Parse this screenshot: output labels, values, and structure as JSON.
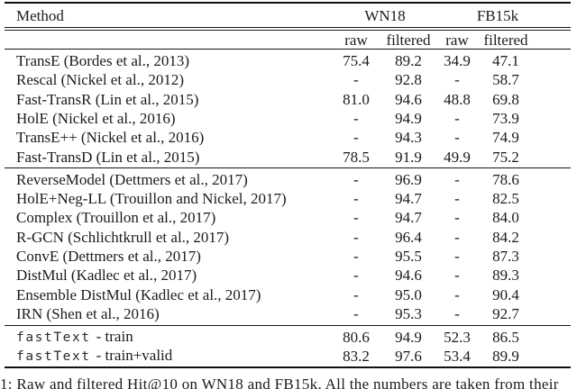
{
  "table": {
    "header": {
      "method_label": "Method",
      "group1": "WN18",
      "group2": "FB15k",
      "sub": [
        "raw",
        "filtered",
        "raw",
        "filtered"
      ]
    },
    "sections": [
      {
        "rows": [
          {
            "method": "TransE (Bordes et al., 2013)",
            "v": [
              "75.4",
              "89.2",
              "34.9",
              "47.1"
            ]
          },
          {
            "method": "Rescal (Nickel et al., 2012)",
            "v": [
              "-",
              "92.8",
              "-",
              "58.7"
            ]
          },
          {
            "method": "Fast-TransR (Lin et al., 2015)",
            "v": [
              "81.0",
              "94.6",
              "48.8",
              "69.8"
            ]
          },
          {
            "method": "HolE (Nickel et al., 2016)",
            "v": [
              "-",
              "94.9",
              "-",
              "73.9"
            ]
          },
          {
            "method": "TransE++ (Nickel et al., 2016)",
            "v": [
              "-",
              "94.3",
              "-",
              "74.9"
            ]
          },
          {
            "method": "Fast-TransD (Lin et al., 2015)",
            "v": [
              "78.5",
              "91.9",
              "49.9",
              "75.2"
            ]
          }
        ]
      },
      {
        "rows": [
          {
            "method": "ReverseModel (Dettmers et al., 2017)",
            "v": [
              "-",
              "96.9",
              "-",
              "78.6"
            ]
          },
          {
            "method": "HolE+Neg-LL (Trouillon and Nickel, 2017)",
            "v": [
              "-",
              "94.7",
              "-",
              "82.5"
            ]
          },
          {
            "method": "Complex (Trouillon et al., 2017)",
            "v": [
              "-",
              "94.7",
              "-",
              "84.0"
            ]
          },
          {
            "method": "R-GCN (Schlichtkrull et al., 2017)",
            "v": [
              "-",
              "96.4",
              "-",
              "84.2"
            ]
          },
          {
            "method": "ConvE (Dettmers et al., 2017)",
            "v": [
              "-",
              "95.5",
              "-",
              "87.3"
            ]
          },
          {
            "method": "DistMul (Kadlec et al., 2017)",
            "v": [
              "-",
              "94.6",
              "-",
              "89.3"
            ]
          },
          {
            "method": "Ensemble DistMul (Kadlec et al., 2017)",
            "v": [
              "-",
              "95.0",
              "-",
              "90.4"
            ]
          },
          {
            "method": "IRN (Shen et al., 2016)",
            "v": [
              "-",
              "95.3",
              "-",
              "92.7"
            ]
          }
        ]
      },
      {
        "rows": [
          {
            "mono": "fastText",
            "rest": "- train",
            "v": [
              "80.6",
              "94.9",
              "52.3",
              "86.5"
            ]
          },
          {
            "mono": "fastText",
            "rest": "- train+valid",
            "v": [
              "83.2",
              "97.6",
              "53.4",
              "89.9"
            ]
          }
        ]
      }
    ]
  },
  "caption": {
    "text": "1: Raw and filtered Hit@10 on WN18 and FB15k. All the numbers are taken from their"
  }
}
